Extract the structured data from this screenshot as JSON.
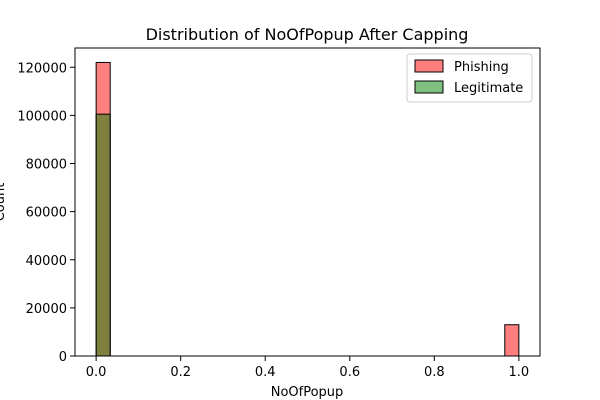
{
  "chart_data": {
    "type": "bar",
    "title": "Distribution of NoOfPopup After Capping",
    "xlabel": "NoOfPopup",
    "ylabel": "Count",
    "xlim": [
      -0.05,
      1.05
    ],
    "ylim": [
      0,
      128000
    ],
    "x_ticks": [
      "0.0",
      "0.2",
      "0.4",
      "0.6",
      "0.8",
      "1.0"
    ],
    "y_ticks": [
      "0",
      "20000",
      "40000",
      "60000",
      "80000",
      "100000",
      "120000"
    ],
    "bin_width": 0.0333,
    "legend_position": "top-right",
    "grid": false,
    "series": [
      {
        "name": "Phishing",
        "color": "#ff0000",
        "opacity": 0.5,
        "bins": [
          {
            "x_start": 0.0,
            "x_end": 0.0333,
            "count": 122000
          },
          {
            "x_start": 0.9667,
            "x_end": 1.0,
            "count": 13000
          }
        ]
      },
      {
        "name": "Legitimate",
        "color": "#008000",
        "opacity": 0.5,
        "bins": [
          {
            "x_start": 0.0,
            "x_end": 0.0333,
            "count": 100500
          },
          {
            "x_start": 0.9667,
            "x_end": 1.0,
            "count": 0
          }
        ]
      }
    ]
  }
}
